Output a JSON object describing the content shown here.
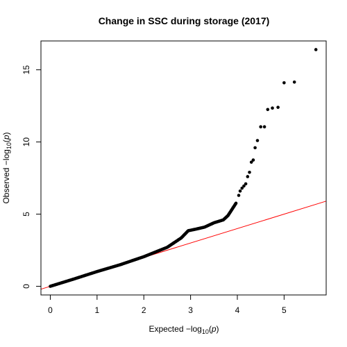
{
  "chart_data": {
    "type": "scatter",
    "title": "Change in SSC during storage (2017)",
    "xlabel": "Expected  −log",
    "xlabel_sub": "10",
    "xlabel_paren_open": "(",
    "xlabel_var": "p",
    "xlabel_paren_close": ")",
    "ylabel": "Observed  −log",
    "ylabel_sub": "10",
    "ylabel_paren_open": "(",
    "ylabel_var": "p",
    "ylabel_paren_close": ")",
    "xlim": [
      -0.2,
      5.9
    ],
    "ylim": [
      -0.6,
      17.0
    ],
    "x_ticks": [
      0,
      1,
      2,
      3,
      4,
      5
    ],
    "x_tick_labels": [
      "0",
      "1",
      "2",
      "3",
      "4",
      "5"
    ],
    "y_ticks": [
      0,
      5,
      10,
      15
    ],
    "y_tick_labels": [
      "0",
      "5",
      "10",
      "15"
    ],
    "point_color": "#000000",
    "reference_line": {
      "slope": 1,
      "intercept": 0,
      "color": "#ff0000"
    },
    "grid": false,
    "curve": [
      [
        0.0,
        0.0
      ],
      [
        0.5,
        0.5
      ],
      [
        1.0,
        1.02
      ],
      [
        1.5,
        1.5
      ],
      [
        2.0,
        2.05
      ],
      [
        2.5,
        2.7
      ],
      [
        2.8,
        3.35
      ],
      [
        2.95,
        3.85
      ],
      [
        3.1,
        3.95
      ],
      [
        3.3,
        4.1
      ],
      [
        3.5,
        4.4
      ],
      [
        3.7,
        4.6
      ],
      [
        3.8,
        4.9
      ],
      [
        3.9,
        5.4
      ],
      [
        3.98,
        5.8
      ]
    ],
    "outliers": [
      [
        4.03,
        6.3
      ],
      [
        4.06,
        6.6
      ],
      [
        4.1,
        6.8
      ],
      [
        4.14,
        6.95
      ],
      [
        4.18,
        7.1
      ],
      [
        4.22,
        7.6
      ],
      [
        4.26,
        7.9
      ],
      [
        4.3,
        8.6
      ],
      [
        4.34,
        8.75
      ],
      [
        4.38,
        9.6
      ],
      [
        4.43,
        10.1
      ],
      [
        4.5,
        11.05
      ],
      [
        4.58,
        11.05
      ],
      [
        4.65,
        12.25
      ],
      [
        4.75,
        12.35
      ],
      [
        4.87,
        12.4
      ],
      [
        5.0,
        14.1
      ],
      [
        5.22,
        14.15
      ],
      [
        5.68,
        16.4
      ]
    ]
  }
}
